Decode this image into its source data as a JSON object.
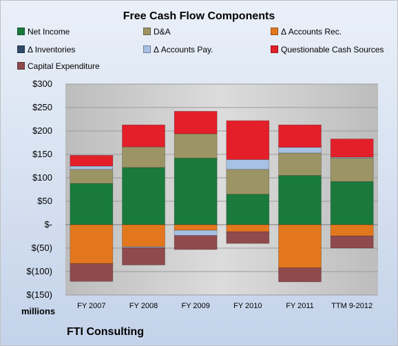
{
  "units_label": "millions",
  "company": "FTI Consulting",
  "chart_data": {
    "type": "bar",
    "stacked": true,
    "title": "Free Cash Flow Components",
    "categories": [
      "FY 2007",
      "FY 2008",
      "FY 2009",
      "FY 2010",
      "FY 2011",
      "TTM 9-2012"
    ],
    "ylim": [
      -150,
      300
    ],
    "yticks": [
      300,
      250,
      200,
      150,
      100,
      50,
      0,
      -50,
      -100,
      -150
    ],
    "ytick_labels": [
      "$300",
      "$250",
      "$200",
      "$150",
      "$100",
      "$50",
      "$-",
      "$(50)",
      "$(100)",
      "$(150)"
    ],
    "grid": true,
    "legend_position": "top",
    "series": [
      {
        "name": "Net Income",
        "color": "#1a7a3c",
        "values": [
          88,
          122,
          142,
          65,
          105,
          92
        ]
      },
      {
        "name": "D&A",
        "color": "#9c9465",
        "values": [
          30,
          44,
          52,
          53,
          48,
          50
        ]
      },
      {
        "name": "Δ Accounts Rec.",
        "color": "#e2771e",
        "values": [
          -83,
          -47,
          -12,
          -15,
          -92,
          -24
        ]
      },
      {
        "name": "Δ Inventories",
        "color": "#2e4a66",
        "values": [
          0,
          0,
          0,
          0,
          0,
          0
        ]
      },
      {
        "name": "Δ Accounts Pay.",
        "color": "#a6c1e3",
        "values": [
          7,
          -2,
          -11,
          21,
          12,
          2
        ]
      },
      {
        "name": "Questionable Cash Sources",
        "color": "#e3202a",
        "values": [
          23,
          47,
          48,
          83,
          48,
          39
        ]
      },
      {
        "name": "Capital Expenditure",
        "color": "#8f4a4d",
        "values": [
          -38,
          -37,
          -30,
          -25,
          -30,
          -26
        ]
      }
    ]
  }
}
